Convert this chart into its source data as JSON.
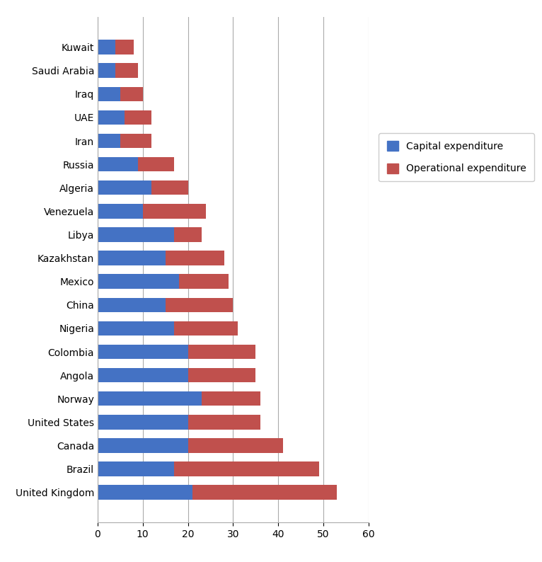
{
  "countries": [
    "United Kingdom",
    "Brazil",
    "Canada",
    "United States",
    "Norway",
    "Angola",
    "Colombia",
    "Nigeria",
    "China",
    "Mexico",
    "Kazakhstan",
    "Libya",
    "Venezuela",
    "Algeria",
    "Russia",
    "Iran",
    "UAE",
    "Iraq",
    "Saudi Arabia",
    "Kuwait"
  ],
  "capital_expenditure": [
    21,
    17,
    20,
    20,
    23,
    20,
    20,
    17,
    15,
    18,
    15,
    17,
    10,
    12,
    9,
    5,
    6,
    5,
    4,
    4
  ],
  "operational_expenditure": [
    32,
    32,
    21,
    16,
    13,
    15,
    15,
    14,
    15,
    11,
    13,
    6,
    14,
    8,
    8,
    7,
    6,
    5,
    5,
    4
  ],
  "capital_color": "#4472C4",
  "operational_color": "#C0504D",
  "background_color": "#FFFFFF",
  "legend_capital": "Capital expenditure",
  "legend_operational": "Operational expenditure",
  "xlim": [
    0,
    60
  ],
  "xticks": [
    0,
    10,
    20,
    30,
    40,
    50,
    60
  ],
  "grid_color": "#AAAAAA",
  "bar_height": 0.62,
  "figure_width": 7.66,
  "figure_height": 7.94,
  "dpi": 100,
  "tick_fontsize": 10,
  "legend_fontsize": 10
}
